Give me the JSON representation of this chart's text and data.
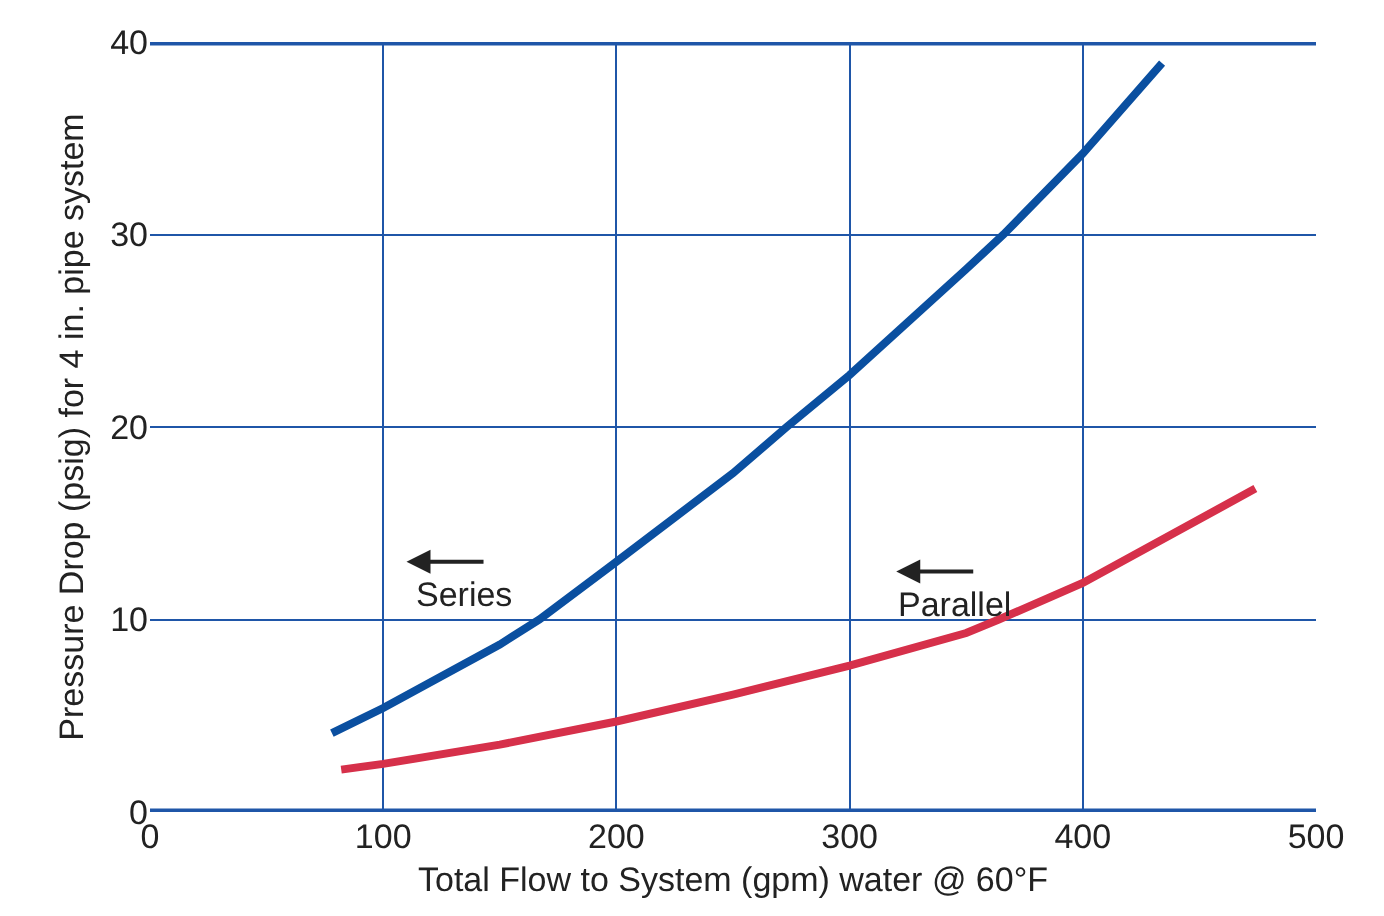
{
  "chart_data": {
    "type": "line",
    "xlabel": "Total Flow to System (gpm) water @ 60°F",
    "ylabel": "Pressure Drop (psig) for 4 in. pipe system",
    "xlim": [
      0,
      500
    ],
    "xticks": [
      0,
      100,
      200,
      300,
      400,
      500
    ],
    "ylim": [
      0,
      40
    ],
    "yticks": [
      0,
      10,
      20,
      30,
      40
    ],
    "grid": true,
    "legend": false,
    "marker": "none",
    "line_style": "solid",
    "series": [
      {
        "name": "Series",
        "color": "#0a4fa0",
        "x": [
          78,
          100,
          150,
          167,
          200,
          250,
          273,
          300,
          350,
          366,
          400,
          434
        ],
        "values": [
          4.1,
          5.4,
          8.7,
          10,
          13.0,
          17.6,
          20,
          22.7,
          28.2,
          30,
          34.2,
          38.9
        ]
      },
      {
        "name": "Parallel",
        "color": "#d6304a",
        "x": [
          82,
          100,
          150,
          200,
          250,
          300,
          350,
          364,
          400,
          474
        ],
        "values": [
          2.2,
          2.5,
          3.5,
          4.7,
          6.1,
          7.6,
          9.3,
          10,
          11.9,
          16.8
        ]
      }
    ]
  }
}
